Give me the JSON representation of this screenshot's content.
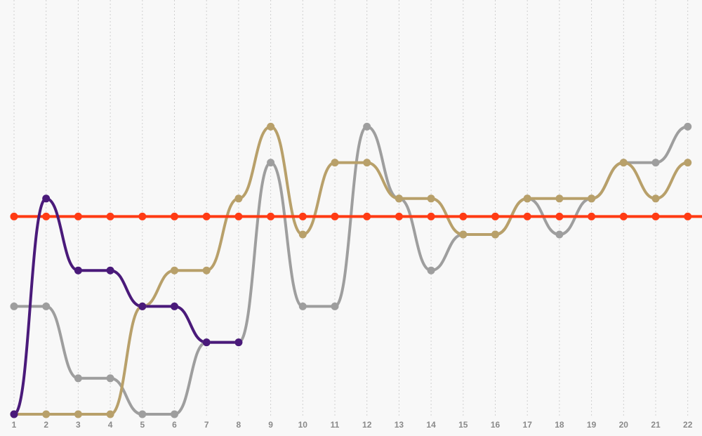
{
  "chart_data": {
    "type": "line",
    "x": [
      1,
      2,
      3,
      4,
      5,
      6,
      7,
      8,
      9,
      10,
      11,
      12,
      13,
      14,
      15,
      16,
      17,
      18,
      19,
      20,
      21,
      22
    ],
    "ylim": [
      0,
      10
    ],
    "grid": "vertical dashed lines at each x",
    "interpolation": "smooth",
    "series": [
      {
        "color": "#9e9e9e",
        "values": [
          3,
          3,
          1,
          1,
          0,
          0,
          2,
          2,
          7,
          3,
          3,
          8,
          6,
          4,
          5,
          5,
          6,
          5,
          6,
          7,
          7,
          8
        ]
      },
      {
        "color": "#b8a06a",
        "values": [
          0,
          0,
          0,
          0,
          3,
          4,
          4,
          6,
          8,
          5,
          7,
          7,
          6,
          6,
          5,
          5,
          6,
          6,
          6,
          7,
          6,
          7
        ]
      },
      {
        "color": "#ff3b14",
        "values": [
          5.5,
          5.5,
          5.5,
          5.5,
          5.5,
          5.5,
          5.5,
          5.5,
          5.5,
          5.5,
          5.5,
          5.5,
          5.5,
          5.5,
          5.5,
          5.5,
          5.5,
          5.5,
          5.5,
          5.5,
          5.5,
          5.5
        ]
      },
      {
        "color": "#4a1a7a",
        "values": [
          0,
          6,
          4,
          4,
          3,
          3,
          2,
          2,
          null,
          null,
          null,
          null,
          null,
          null,
          null,
          null,
          null,
          null,
          null,
          null,
          null,
          null
        ]
      }
    ]
  }
}
